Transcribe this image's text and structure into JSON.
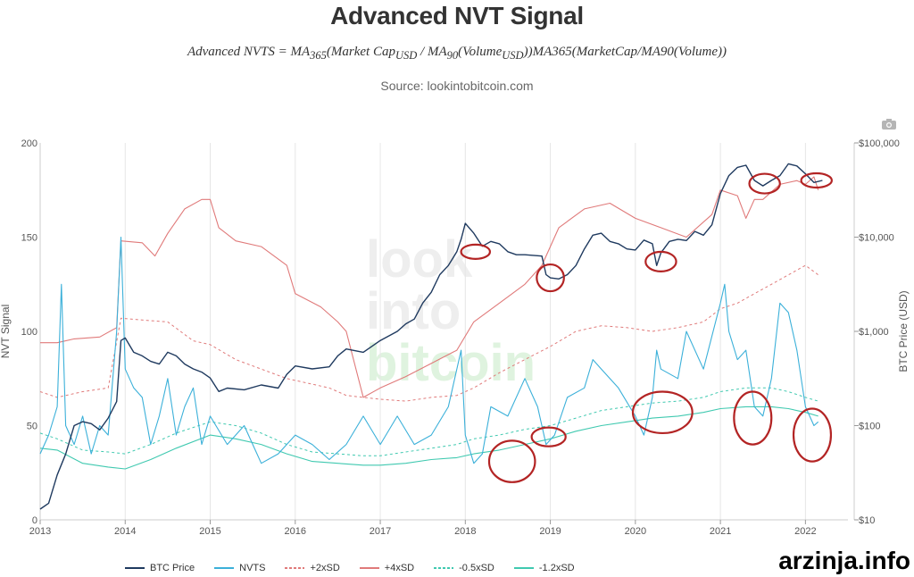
{
  "title": "Advanced NVT Signal",
  "formula": "Advanced NVTS = MA365(Market CapUSD / MA90(VolumeUSD))MA365(MarketCap/MA90(Volume))",
  "formula_parts": {
    "lhs": "Advanced NVTS = MA",
    "sub365": "365",
    "p1": "(Market Cap",
    "subUSD1": "USD",
    "p2": " / MA",
    "sub90": "90",
    "p3": "(Volume",
    "subUSD2": "USD",
    "p4": "))MA365(MarketCap/MA90(Volume))"
  },
  "source": "Source: lookintobitcoin.com",
  "watermark": "arzinja.info",
  "background_logo": [
    "look",
    "into",
    "bitcoin"
  ],
  "colors": {
    "btc_price": "#1f3a5f",
    "nvts": "#3bb0d9",
    "plus2sd": "#e07a7a",
    "plus4sd": "#e07a7a",
    "minus05sd": "#40c9b0",
    "minus12sd": "#40c9b0",
    "circles": "#b32424",
    "grid": "#e6e6e6"
  },
  "chart_data": {
    "type": "line",
    "x_ticks": [
      "2013",
      "2014",
      "2015",
      "2016",
      "2017",
      "2018",
      "2019",
      "2020",
      "2021",
      "2022"
    ],
    "xlim": [
      2013.0,
      2022.5
    ],
    "y_left": {
      "label": "NVT Signal",
      "ticks": [
        0,
        50,
        100,
        150,
        200
      ],
      "range": [
        0,
        200
      ]
    },
    "y_right": {
      "label": "BTC Price (USD)",
      "scale": "log",
      "ticks": [
        "$10",
        "$100",
        "$1,000",
        "$10,000",
        "$100,000"
      ],
      "range": [
        10,
        100000
      ]
    },
    "legend": [
      "BTC Price",
      "NVTS",
      "+2xSD",
      "+4xSD",
      "-0.5xSD",
      "-1.2xSD"
    ],
    "series": [
      {
        "name": "BTC Price",
        "axis": "right",
        "style": "solid",
        "x": [
          2013.0,
          2013.1,
          2013.2,
          2013.3,
          2013.4,
          2013.5,
          2013.6,
          2013.7,
          2013.8,
          2013.9,
          2013.95,
          2014.0,
          2014.1,
          2014.2,
          2014.3,
          2014.4,
          2014.5,
          2014.6,
          2014.7,
          2014.8,
          2014.9,
          2015.0,
          2015.1,
          2015.2,
          2015.4,
          2015.6,
          2015.8,
          2015.9,
          2016.0,
          2016.2,
          2016.4,
          2016.5,
          2016.6,
          2016.8,
          2017.0,
          2017.2,
          2017.3,
          2017.4,
          2017.5,
          2017.6,
          2017.7,
          2017.8,
          2017.9,
          2017.95,
          2018.0,
          2018.1,
          2018.2,
          2018.3,
          2018.4,
          2018.5,
          2018.6,
          2018.7,
          2018.8,
          2018.9,
          2018.95,
          2019.0,
          2019.1,
          2019.2,
          2019.3,
          2019.4,
          2019.5,
          2019.6,
          2019.7,
          2019.8,
          2019.9,
          2020.0,
          2020.1,
          2020.2,
          2020.25,
          2020.3,
          2020.4,
          2020.5,
          2020.6,
          2020.7,
          2020.8,
          2020.9,
          2021.0,
          2021.1,
          2021.2,
          2021.3,
          2021.4,
          2021.5,
          2021.6,
          2021.7,
          2021.8,
          2021.9,
          2022.0,
          2022.1,
          2022.2
        ],
        "y": [
          13,
          15,
          30,
          50,
          100,
          110,
          105,
          90,
          120,
          180,
          800,
          850,
          600,
          550,
          480,
          450,
          600,
          550,
          450,
          400,
          370,
          320,
          230,
          250,
          240,
          270,
          250,
          350,
          430,
          400,
          420,
          550,
          650,
          600,
          800,
          1000,
          1200,
          1350,
          2000,
          2600,
          4000,
          5000,
          7000,
          9500,
          14000,
          11000,
          8000,
          9000,
          8500,
          7000,
          6500,
          6500,
          6400,
          6300,
          4000,
          3700,
          3600,
          4000,
          5000,
          7500,
          10500,
          11000,
          9000,
          8500,
          7500,
          7300,
          9300,
          8500,
          5000,
          6800,
          9000,
          9500,
          9200,
          11500,
          10500,
          13500,
          29000,
          45000,
          55000,
          58000,
          40000,
          35000,
          40000,
          45000,
          60000,
          57000,
          47000,
          38000,
          40000
        ]
      },
      {
        "name": "NVTS",
        "axis": "left",
        "style": "solid",
        "x": [
          2013.0,
          2013.1,
          2013.2,
          2013.25,
          2013.3,
          2013.4,
          2013.5,
          2013.6,
          2013.7,
          2013.8,
          2013.9,
          2013.95,
          2014.0,
          2014.1,
          2014.2,
          2014.3,
          2014.4,
          2014.5,
          2014.6,
          2014.7,
          2014.8,
          2014.9,
          2015.0,
          2015.2,
          2015.4,
          2015.6,
          2015.8,
          2016.0,
          2016.2,
          2016.4,
          2016.6,
          2016.8,
          2017.0,
          2017.2,
          2017.4,
          2017.6,
          2017.8,
          2017.95,
          2018.0,
          2018.1,
          2018.2,
          2018.3,
          2018.5,
          2018.7,
          2018.85,
          2018.95,
          2019.05,
          2019.2,
          2019.4,
          2019.5,
          2019.6,
          2019.8,
          2020.0,
          2020.1,
          2020.2,
          2020.25,
          2020.3,
          2020.5,
          2020.6,
          2020.8,
          2021.0,
          2021.05,
          2021.1,
          2021.2,
          2021.3,
          2021.4,
          2021.5,
          2021.6,
          2021.7,
          2021.8,
          2021.9,
          2022.0,
          2022.1,
          2022.15
        ],
        "y": [
          35,
          45,
          60,
          125,
          50,
          40,
          55,
          35,
          50,
          45,
          100,
          150,
          80,
          70,
          65,
          40,
          55,
          75,
          45,
          60,
          70,
          40,
          55,
          40,
          50,
          30,
          35,
          45,
          40,
          32,
          40,
          55,
          40,
          55,
          40,
          45,
          60,
          90,
          45,
          30,
          35,
          60,
          55,
          75,
          60,
          40,
          45,
          65,
          70,
          85,
          80,
          70,
          55,
          45,
          65,
          90,
          80,
          75,
          100,
          80,
          115,
          125,
          100,
          85,
          90,
          60,
          55,
          75,
          115,
          110,
          90,
          60,
          50,
          52
        ]
      },
      {
        "name": "+2xSD",
        "axis": "left",
        "style": "dashed",
        "x": [
          2013.0,
          2013.2,
          2013.5,
          2013.8,
          2013.95,
          2014.2,
          2014.5,
          2014.8,
          2015.0,
          2015.3,
          2015.6,
          2015.9,
          2016.2,
          2016.4,
          2016.6,
          2016.8,
          2017.0,
          2017.3,
          2017.6,
          2017.9,
          2018.1,
          2018.4,
          2018.7,
          2019.0,
          2019.3,
          2019.6,
          2019.9,
          2020.2,
          2020.5,
          2020.8,
          2021.0,
          2021.2,
          2021.4,
          2021.6,
          2021.8,
          2022.0,
          2022.15
        ],
        "y": [
          68,
          65,
          68,
          70,
          107,
          106,
          105,
          95,
          93,
          85,
          80,
          75,
          72,
          70,
          66,
          65,
          64,
          63,
          65,
          66,
          70,
          78,
          85,
          92,
          100,
          103,
          102,
          100,
          102,
          105,
          112,
          115,
          120,
          125,
          130,
          135,
          130
        ]
      },
      {
        "name": "+4xSD",
        "axis": "left",
        "style": "solid",
        "x": [
          2013.0,
          2013.2,
          2013.4,
          2013.7,
          2013.9,
          2013.95,
          2014.2,
          2014.35,
          2014.5,
          2014.7,
          2014.9,
          2015.0,
          2015.1,
          2015.3,
          2015.6,
          2015.9,
          2016.0,
          2016.3,
          2016.5,
          2016.6,
          2016.8,
          2017.0,
          2017.3,
          2017.6,
          2017.9,
          2018.1,
          2018.4,
          2018.7,
          2018.9,
          2019.1,
          2019.4,
          2019.7,
          2020.0,
          2020.3,
          2020.6,
          2020.9,
          2021.0,
          2021.2,
          2021.3,
          2021.4,
          2021.5,
          2021.7,
          2021.9,
          2022.0,
          2022.1,
          2022.15
        ],
        "y": [
          94,
          94,
          96,
          97,
          102,
          148,
          147,
          140,
          152,
          165,
          170,
          170,
          155,
          148,
          145,
          135,
          120,
          113,
          105,
          100,
          65,
          70,
          76,
          83,
          90,
          105,
          115,
          125,
          135,
          155,
          165,
          168,
          160,
          155,
          150,
          162,
          175,
          172,
          160,
          170,
          170,
          178,
          180,
          178,
          182,
          175
        ]
      },
      {
        "name": "-0.5xSD",
        "axis": "left",
        "style": "dashed",
        "x": [
          2013.0,
          2013.2,
          2013.5,
          2013.8,
          2014.0,
          2014.3,
          2014.6,
          2015.0,
          2015.3,
          2015.6,
          2015.9,
          2016.2,
          2016.5,
          2016.8,
          2017.0,
          2017.3,
          2017.6,
          2017.9,
          2018.1,
          2018.4,
          2018.7,
          2019.0,
          2019.3,
          2019.6,
          2019.9,
          2020.2,
          2020.5,
          2020.8,
          2021.0,
          2021.3,
          2021.6,
          2021.8,
          2022.0,
          2022.15
        ],
        "y": [
          46,
          43,
          37,
          36,
          35,
          40,
          46,
          52,
          50,
          46,
          40,
          36,
          35,
          34,
          34,
          36,
          38,
          40,
          43,
          45,
          48,
          50,
          54,
          58,
          60,
          62,
          63,
          65,
          68,
          70,
          70,
          68,
          65,
          63
        ]
      },
      {
        "name": "-1.2xSD",
        "axis": "left",
        "style": "solid",
        "x": [
          2013.0,
          2013.2,
          2013.5,
          2013.8,
          2014.0,
          2014.3,
          2014.6,
          2015.0,
          2015.3,
          2015.6,
          2015.9,
          2016.2,
          2016.5,
          2016.8,
          2017.0,
          2017.3,
          2017.6,
          2017.9,
          2018.1,
          2018.4,
          2018.7,
          2019.0,
          2019.3,
          2019.6,
          2019.9,
          2020.2,
          2020.5,
          2020.8,
          2021.0,
          2021.3,
          2021.6,
          2021.8,
          2022.0,
          2022.15
        ],
        "y": [
          38,
          37,
          30,
          28,
          27,
          32,
          38,
          45,
          43,
          40,
          35,
          31,
          30,
          29,
          29,
          30,
          32,
          33,
          35,
          37,
          40,
          43,
          47,
          50,
          52,
          54,
          55,
          57,
          59,
          60,
          60,
          59,
          57,
          55
        ]
      }
    ],
    "annotations": [
      {
        "shape": "circle",
        "axis": "left",
        "cx": 2018.55,
        "cy": 31,
        "rx": 0.27,
        "ry": 11
      },
      {
        "shape": "circle",
        "axis": "left",
        "cx": 2018.98,
        "cy": 44,
        "rx": 0.2,
        "ry": 5
      },
      {
        "shape": "circle",
        "axis": "left",
        "cx": 2020.32,
        "cy": 57,
        "rx": 0.35,
        "ry": 11
      },
      {
        "shape": "circle",
        "axis": "left",
        "cx": 2021.38,
        "cy": 54,
        "rx": 0.22,
        "ry": 14
      },
      {
        "shape": "circle",
        "axis": "left",
        "cx": 2022.08,
        "cy": 45,
        "rx": 0.22,
        "ry": 14
      },
      {
        "shape": "circle",
        "axis": "right",
        "cx": 2018.12,
        "cy": 7000,
        "rx": 0.17,
        "ry_px": 8
      },
      {
        "shape": "circle",
        "axis": "right",
        "cx": 2019.0,
        "cy": 3700,
        "rx": 0.16,
        "ry_px": 15
      },
      {
        "shape": "circle",
        "axis": "right",
        "cx": 2020.3,
        "cy": 5500,
        "rx": 0.18,
        "ry_px": 11
      },
      {
        "shape": "circle",
        "axis": "right",
        "cx": 2021.52,
        "cy": 37000,
        "rx": 0.18,
        "ry_px": 11
      },
      {
        "shape": "circle",
        "axis": "right",
        "cx": 2022.13,
        "cy": 40000,
        "rx": 0.18,
        "ry_px": 8
      }
    ]
  }
}
